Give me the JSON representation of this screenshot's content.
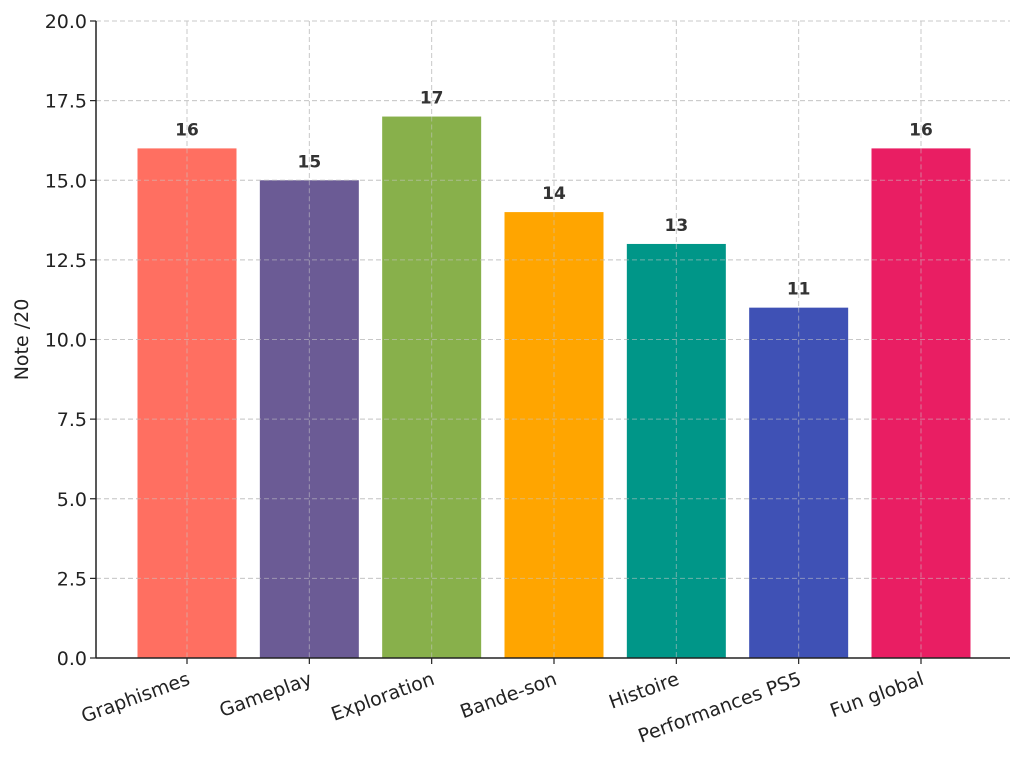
{
  "chart_data": {
    "type": "bar",
    "categories": [
      "Graphismes",
      "Gameplay",
      "Exploration",
      "Bande-son",
      "Histoire",
      "Performances PS5",
      "Fun global"
    ],
    "values": [
      16,
      15,
      17,
      14,
      13,
      11,
      16
    ],
    "value_labels": [
      "16",
      "15",
      "17",
      "14",
      "13",
      "11",
      "16"
    ],
    "colors": [
      "#ff6f61",
      "#6b5b95",
      "#88b04b",
      "#ffa500",
      "#009688",
      "#3f51b5",
      "#e91e63"
    ],
    "ylabel": "Note /20",
    "ylim": [
      0,
      20
    ],
    "yticks": [
      0,
      2.5,
      5,
      7.5,
      10,
      12.5,
      15,
      17.5,
      20
    ],
    "ytick_labels": [
      "0.0",
      "2.5",
      "5.0",
      "7.5",
      "10.0",
      "12.5",
      "15.0",
      "17.5",
      "20.0"
    ],
    "grid": true,
    "grid_style": "dashed",
    "xtick_rotation": "rotated"
  }
}
